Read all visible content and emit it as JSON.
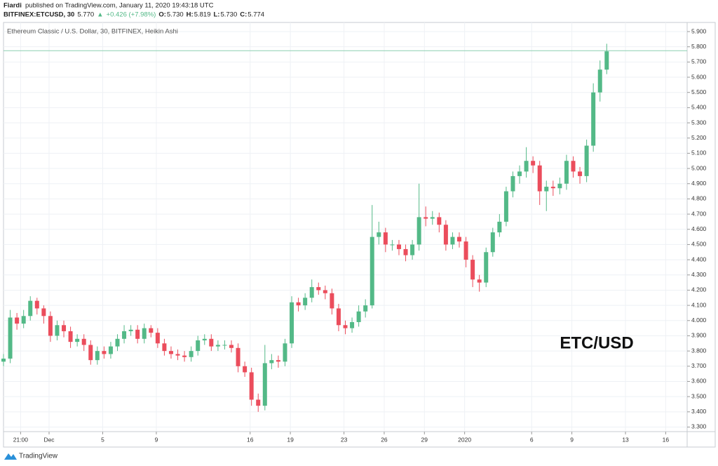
{
  "header": {
    "author": "Fiardi",
    "published": "published on TradingView.com, January 11, 2020 19:43:18 UTC",
    "symbol": "BITFINEX:ETCUSD, 30",
    "last": "5.770",
    "arrow": "▲",
    "change": "+0.426 (+7.98%)",
    "ohlc": [
      {
        "label": "O:",
        "value": "5.730"
      },
      {
        "label": "H:",
        "value": "5.819"
      },
      {
        "label": "L:",
        "value": "5.730"
      },
      {
        "label": "C:",
        "value": "5.774"
      }
    ]
  },
  "footer": {
    "brand": "TradingView"
  },
  "chart_data": {
    "type": "candlestick",
    "title": "Ethereum Classic / U.S. Dollar, 30, BITFINEX, Heikin Ashi",
    "annotation": "ETC/USD",
    "up_color": "#53b987",
    "down_color": "#eb4d5c",
    "grid": true,
    "x": [
      -2.4,
      -1.9,
      -1.4,
      -0.9,
      -0.4,
      0.1,
      0.6,
      1.1,
      1.6,
      2.1,
      2.6,
      3.1,
      3.6,
      4.1,
      4.6,
      5.1,
      5.6,
      6.1,
      6.6,
      7.1,
      7.6,
      8.1,
      8.6,
      9.1,
      9.6,
      10.1,
      10.6,
      11.1,
      11.6,
      12.1,
      12.6,
      13.1,
      13.6,
      14.1,
      14.6,
      15.1,
      15.6,
      16.1,
      16.6,
      17.1,
      17.6,
      18.1,
      18.6,
      19.1,
      19.6,
      20.1,
      20.6,
      21.1,
      21.6,
      22.1,
      22.6,
      23.1,
      23.6,
      24.1,
      24.6,
      25.1,
      25.6,
      26.1,
      26.6,
      27.1,
      27.6,
      28.1,
      28.6,
      29.1,
      29.6,
      30.1,
      30.6,
      31.1,
      31.6,
      32.1,
      32.6,
      33.1,
      33.6,
      34.1,
      34.6,
      35.1,
      35.6,
      36.1,
      36.6,
      37.1,
      37.6,
      38.1,
      38.6,
      39.1,
      39.6,
      40.1,
      40.6,
      41.1,
      41.6,
      42.1,
      42.6
    ],
    "open": [
      3.73,
      3.75,
      4.02,
      3.98,
      4.03,
      4.13,
      4.08,
      4.03,
      3.9,
      3.97,
      3.93,
      3.86,
      3.88,
      3.84,
      3.74,
      3.8,
      3.78,
      3.83,
      3.88,
      3.93,
      3.94,
      3.88,
      3.95,
      3.92,
      3.85,
      3.8,
      3.78,
      3.77,
      3.76,
      3.8,
      3.87,
      3.88,
      3.83,
      3.84,
      3.84,
      3.82,
      3.7,
      3.66,
      3.48,
      3.44,
      3.72,
      3.74,
      3.73,
      3.85,
      4.12,
      4.1,
      4.15,
      4.22,
      4.2,
      4.18,
      4.08,
      3.97,
      3.95,
      3.99,
      4.06,
      4.1,
      4.55,
      4.58,
      4.5,
      4.5,
      4.47,
      4.43,
      4.5,
      4.68,
      4.67,
      4.68,
      4.63,
      4.5,
      4.55,
      4.52,
      4.4,
      4.27,
      4.25,
      4.45,
      4.58,
      4.65,
      4.85,
      4.95,
      4.98,
      5.05,
      5.02,
      4.85,
      4.88,
      4.87,
      4.9,
      5.05,
      4.98,
      4.95,
      5.15,
      5.5,
      5.65
    ],
    "high": [
      3.78,
      4.07,
      4.05,
      4.07,
      4.16,
      4.15,
      4.1,
      4.06,
      4.0,
      4.0,
      3.96,
      3.91,
      3.91,
      3.87,
      3.83,
      3.83,
      3.86,
      3.91,
      3.97,
      3.97,
      3.97,
      3.98,
      3.97,
      3.95,
      3.88,
      3.83,
      3.81,
      3.8,
      3.83,
      3.9,
      3.91,
      3.91,
      3.87,
      3.87,
      3.87,
      3.85,
      3.73,
      3.69,
      3.52,
      3.84,
      3.78,
      3.77,
      3.88,
      4.16,
      4.15,
      4.18,
      4.27,
      4.25,
      4.23,
      4.21,
      4.11,
      4.0,
      4.02,
      4.1,
      4.14,
      4.76,
      4.65,
      4.61,
      4.53,
      4.53,
      4.5,
      4.53,
      4.9,
      4.75,
      4.72,
      4.71,
      4.66,
      4.58,
      4.58,
      4.55,
      4.43,
      4.3,
      4.48,
      4.61,
      4.7,
      4.88,
      4.98,
      5.02,
      5.14,
      5.08,
      5.05,
      4.92,
      4.92,
      4.94,
      5.09,
      5.08,
      5.01,
      5.19,
      5.56,
      5.71,
      5.82
    ],
    "low": [
      3.7,
      3.72,
      3.94,
      3.95,
      4.0,
      4.04,
      3.98,
      3.86,
      3.87,
      3.89,
      3.82,
      3.83,
      3.8,
      3.71,
      3.71,
      3.75,
      3.75,
      3.8,
      3.85,
      3.9,
      3.85,
      3.85,
      3.89,
      3.82,
      3.77,
      3.75,
      3.74,
      3.73,
      3.73,
      3.77,
      3.84,
      3.8,
      3.8,
      3.81,
      3.79,
      3.66,
      3.63,
      3.44,
      3.4,
      3.41,
      3.68,
      3.69,
      3.7,
      3.82,
      4.06,
      4.07,
      4.12,
      4.17,
      4.14,
      4.04,
      3.93,
      3.91,
      3.92,
      3.96,
      4.02,
      4.08,
      4.5,
      4.45,
      4.46,
      4.43,
      4.39,
      4.4,
      4.46,
      4.62,
      4.63,
      4.58,
      4.46,
      4.47,
      4.48,
      4.35,
      4.22,
      4.19,
      4.22,
      4.42,
      4.55,
      4.62,
      4.81,
      4.9,
      4.94,
      4.97,
      4.76,
      4.72,
      4.82,
      4.83,
      4.86,
      4.94,
      4.9,
      4.91,
      5.11,
      5.44,
      5.62
    ],
    "close": [
      3.75,
      4.02,
      3.98,
      4.03,
      4.13,
      4.08,
      4.03,
      3.9,
      3.97,
      3.93,
      3.86,
      3.88,
      3.84,
      3.74,
      3.8,
      3.78,
      3.83,
      3.88,
      3.93,
      3.94,
      3.88,
      3.95,
      3.92,
      3.85,
      3.8,
      3.78,
      3.77,
      3.76,
      3.8,
      3.87,
      3.88,
      3.83,
      3.84,
      3.84,
      3.82,
      3.7,
      3.66,
      3.48,
      3.44,
      3.72,
      3.74,
      3.73,
      3.85,
      4.12,
      4.1,
      4.15,
      4.22,
      4.2,
      4.18,
      4.08,
      3.97,
      3.95,
      3.99,
      4.06,
      4.1,
      4.55,
      4.58,
      4.5,
      4.5,
      4.47,
      4.43,
      4.5,
      4.68,
      4.67,
      4.68,
      4.63,
      4.5,
      4.55,
      4.52,
      4.4,
      4.27,
      4.25,
      4.45,
      4.58,
      4.65,
      4.85,
      4.95,
      4.98,
      5.05,
      5.02,
      4.85,
      4.88,
      4.87,
      4.9,
      5.05,
      4.98,
      4.95,
      5.15,
      5.5,
      5.65,
      5.77
    ],
    "xlim": [
      -2.4,
      48.6
    ],
    "ylim": [
      3.27,
      5.96
    ],
    "xticks": [
      {
        "value": -1.125,
        "label": "21:00"
      },
      {
        "value": 1,
        "label": "Dec"
      },
      5,
      9,
      16,
      19,
      23,
      26,
      29,
      {
        "value": 32,
        "label": "2020"
      },
      {
        "value": 37,
        "label": "6"
      },
      {
        "value": 40,
        "label": "9"
      },
      {
        "value": 44,
        "label": "13"
      },
      {
        "value": 47,
        "label": "16"
      }
    ],
    "yticks": [
      {
        "value": 3.3,
        "label": "3.300"
      },
      {
        "value": 3.4,
        "label": "3.400"
      },
      {
        "value": 3.5,
        "label": "3.500"
      },
      {
        "value": 3.6,
        "label": "3.600"
      },
      {
        "value": 3.7,
        "label": "3.700"
      },
      {
        "value": 3.8,
        "label": "3.800"
      },
      {
        "value": 3.9,
        "label": "3.900"
      },
      {
        "value": 4.0,
        "label": "4.000"
      },
      {
        "value": 4.1,
        "label": "4.100"
      },
      {
        "value": 4.2,
        "label": "4.200"
      },
      {
        "value": 4.3,
        "label": "4.300"
      },
      {
        "value": 4.4,
        "label": "4.400"
      },
      {
        "value": 4.5,
        "label": "4.500"
      },
      {
        "value": 4.6,
        "label": "4.600"
      },
      {
        "value": 4.7,
        "label": "4.700"
      },
      {
        "value": 4.8,
        "label": "4.800"
      },
      {
        "value": 4.9,
        "label": "4.900"
      },
      {
        "value": 5.0,
        "label": "5.000"
      },
      {
        "value": 5.1,
        "label": "5.100"
      },
      {
        "value": 5.2,
        "label": "5.200"
      },
      {
        "value": 5.3,
        "label": "5.300"
      },
      {
        "value": 5.4,
        "label": "5.400"
      },
      {
        "value": 5.5,
        "label": "5.500"
      },
      {
        "value": 5.6,
        "label": "5.600"
      },
      {
        "value": 5.7,
        "label": "5.700"
      },
      {
        "value": 5.8,
        "label": "5.800"
      },
      {
        "value": 5.9,
        "label": "5.900"
      }
    ]
  }
}
